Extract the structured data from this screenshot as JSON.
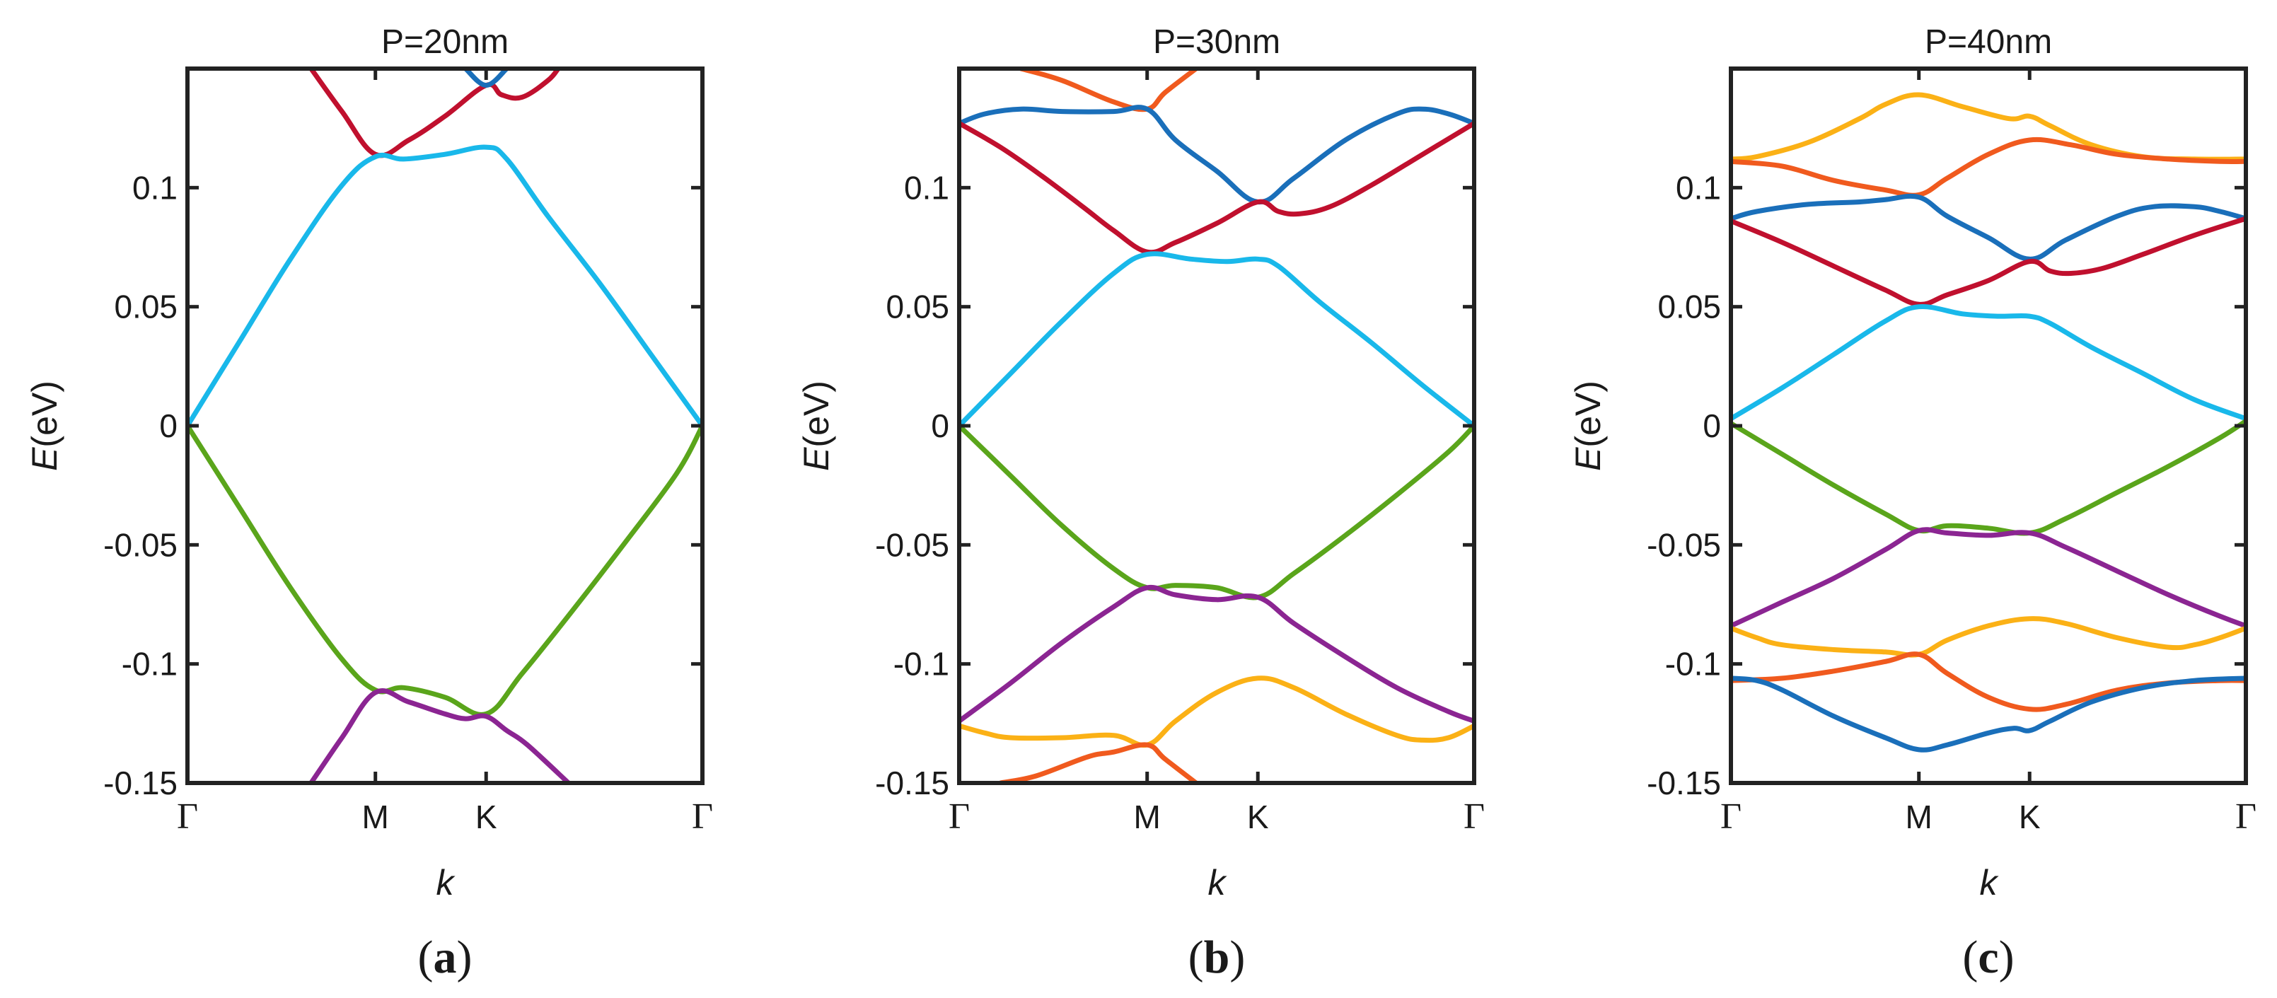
{
  "chart_data": [
    {
      "type": "line",
      "panel_label": "(a)",
      "panel_letter": "a",
      "title": "P=20nm",
      "xlabel": "k",
      "ylabel_italic": "E",
      "ylabel_unit": "(eV)",
      "ylim": [
        -0.15,
        0.15
      ],
      "yticks": [
        -0.15,
        -0.1,
        -0.05,
        0,
        0.05,
        0.1
      ],
      "ytick_labels": [
        "-0.15",
        "-0.1",
        "-0.05",
        "0",
        "0.05",
        "0.1"
      ],
      "xlim": [
        0,
        1
      ],
      "xticks": [
        0,
        0.365,
        0.58,
        1
      ],
      "xtick_labels": [
        "Γ",
        "M",
        "K",
        "Γ"
      ],
      "grid": false,
      "series": [
        {
          "name": "red-upper",
          "color": "#c0102e",
          "x": [
            0.24,
            0.3,
            0.365,
            0.43,
            0.5,
            0.58,
            0.61,
            0.65,
            0.7,
            0.72
          ],
          "y": [
            0.15,
            0.132,
            0.114,
            0.12,
            0.13,
            0.143,
            0.139,
            0.138,
            0.145,
            0.15
          ]
        },
        {
          "name": "blue-top",
          "color": "#1a6fba",
          "x": [
            0.54,
            0.58,
            0.62
          ],
          "y": [
            0.15,
            0.143,
            0.15
          ]
        },
        {
          "name": "cyan",
          "color": "#19b8ea",
          "x": [
            0,
            0.1,
            0.2,
            0.3,
            0.365,
            0.42,
            0.5,
            0.58,
            0.62,
            0.7,
            0.8,
            0.9,
            1
          ],
          "y": [
            0,
            0.035,
            0.07,
            0.101,
            0.113,
            0.112,
            0.114,
            0.117,
            0.112,
            0.088,
            0.06,
            0.03,
            0
          ]
        },
        {
          "name": "green",
          "color": "#5aa51b",
          "x": [
            0,
            0.1,
            0.2,
            0.3,
            0.365,
            0.42,
            0.5,
            0.58,
            0.65,
            0.75,
            0.85,
            0.95,
            1
          ],
          "y": [
            0,
            -0.034,
            -0.068,
            -0.098,
            -0.111,
            -0.11,
            -0.114,
            -0.121,
            -0.104,
            -0.077,
            -0.049,
            -0.02,
            0
          ]
        },
        {
          "name": "purple",
          "color": "#8b2592",
          "x": [
            0.24,
            0.3,
            0.365,
            0.43,
            0.5,
            0.54,
            0.58,
            0.62,
            0.66,
            0.74
          ],
          "y": [
            -0.15,
            -0.131,
            -0.112,
            -0.116,
            -0.121,
            -0.123,
            -0.122,
            -0.128,
            -0.134,
            -0.15
          ]
        }
      ]
    },
    {
      "type": "line",
      "panel_label": "(b)",
      "panel_letter": "b",
      "title": "P=30nm",
      "xlabel": "k",
      "ylabel_italic": "E",
      "ylabel_unit": "(eV)",
      "ylim": [
        -0.15,
        0.15
      ],
      "yticks": [
        -0.15,
        -0.1,
        -0.05,
        0,
        0.05,
        0.1
      ],
      "ytick_labels": [
        "-0.15",
        "-0.1",
        "-0.05",
        "0",
        "0.05",
        "0.1"
      ],
      "xlim": [
        0,
        1
      ],
      "xticks": [
        0,
        0.365,
        0.58,
        1
      ],
      "xtick_labels": [
        "Γ",
        "M",
        "K",
        "Γ"
      ],
      "grid": false,
      "series": [
        {
          "name": "orange-upper",
          "color": "#f05a1e",
          "x": [
            0.12,
            0.2,
            0.3,
            0.365,
            0.4,
            0.46
          ],
          "y": [
            0.15,
            0.145,
            0.136,
            0.133,
            0.14,
            0.15
          ]
        },
        {
          "name": "blue",
          "color": "#1a6fba",
          "x": [
            0,
            0.05,
            0.12,
            0.2,
            0.3,
            0.365,
            0.42,
            0.5,
            0.58,
            0.65,
            0.75,
            0.85,
            0.9,
            0.95,
            1
          ],
          "y": [
            0.127,
            0.131,
            0.133,
            0.132,
            0.132,
            0.133,
            0.12,
            0.107,
            0.094,
            0.104,
            0.12,
            0.131,
            0.133,
            0.131,
            0.127
          ]
        },
        {
          "name": "red",
          "color": "#c0102e",
          "x": [
            0,
            0.08,
            0.16,
            0.24,
            0.3,
            0.365,
            0.42,
            0.5,
            0.58,
            0.62,
            0.66,
            0.72,
            0.8,
            0.9,
            1
          ],
          "y": [
            0.127,
            0.117,
            0.105,
            0.092,
            0.082,
            0.073,
            0.077,
            0.085,
            0.094,
            0.09,
            0.089,
            0.092,
            0.101,
            0.114,
            0.127
          ]
        },
        {
          "name": "cyan",
          "color": "#19b8ea",
          "x": [
            0,
            0.1,
            0.2,
            0.3,
            0.365,
            0.45,
            0.52,
            0.58,
            0.62,
            0.7,
            0.8,
            0.9,
            1
          ],
          "y": [
            0,
            0.022,
            0.044,
            0.064,
            0.072,
            0.07,
            0.069,
            0.07,
            0.067,
            0.052,
            0.035,
            0.017,
            0
          ]
        },
        {
          "name": "green",
          "color": "#5aa51b",
          "x": [
            0,
            0.1,
            0.2,
            0.3,
            0.365,
            0.42,
            0.5,
            0.58,
            0.65,
            0.75,
            0.85,
            0.95,
            1
          ],
          "y": [
            0,
            -0.021,
            -0.042,
            -0.06,
            -0.068,
            -0.067,
            -0.068,
            -0.072,
            -0.062,
            -0.046,
            -0.029,
            -0.011,
            0
          ]
        },
        {
          "name": "purple",
          "color": "#8b2592",
          "x": [
            0,
            0.1,
            0.2,
            0.3,
            0.365,
            0.42,
            0.5,
            0.58,
            0.65,
            0.75,
            0.85,
            0.95,
            1
          ],
          "y": [
            -0.124,
            -0.108,
            -0.091,
            -0.076,
            -0.068,
            -0.071,
            -0.073,
            -0.072,
            -0.083,
            -0.097,
            -0.11,
            -0.12,
            -0.124
          ]
        },
        {
          "name": "yellow",
          "color": "#fbb116",
          "x": [
            0,
            0.05,
            0.1,
            0.2,
            0.3,
            0.365,
            0.42,
            0.5,
            0.58,
            0.65,
            0.75,
            0.85,
            0.9,
            0.95,
            1
          ],
          "y": [
            -0.126,
            -0.129,
            -0.131,
            -0.131,
            -0.13,
            -0.134,
            -0.124,
            -0.112,
            -0.106,
            -0.11,
            -0.121,
            -0.13,
            -0.132,
            -0.131,
            -0.126
          ]
        },
        {
          "name": "orange-lower",
          "color": "#f05a1e",
          "x": [
            0.08,
            0.15,
            0.25,
            0.3,
            0.365,
            0.4,
            0.46
          ],
          "y": [
            -0.15,
            -0.147,
            -0.139,
            -0.137,
            -0.134,
            -0.14,
            -0.15
          ]
        }
      ]
    },
    {
      "type": "line",
      "panel_label": "(c)",
      "panel_letter": "c",
      "title": "P=40nm",
      "xlabel": "k",
      "ylabel_italic": "E",
      "ylabel_unit": "(eV)",
      "ylim": [
        -0.15,
        0.15
      ],
      "yticks": [
        -0.15,
        -0.1,
        -0.05,
        0,
        0.05,
        0.1
      ],
      "ytick_labels": [
        "-0.15",
        "-0.1",
        "-0.05",
        "0",
        "0.05",
        "0.1"
      ],
      "xlim": [
        0,
        1
      ],
      "xticks": [
        0,
        0.365,
        0.58,
        1
      ],
      "xtick_labels": [
        "Γ",
        "M",
        "K",
        "Γ"
      ],
      "grid": false,
      "series": [
        {
          "name": "yellow-upper",
          "color": "#fbb116",
          "x": [
            0,
            0.05,
            0.15,
            0.25,
            0.3,
            0.365,
            0.45,
            0.54,
            0.58,
            0.62,
            0.7,
            0.8,
            0.9,
            1
          ],
          "y": [
            0.112,
            0.113,
            0.119,
            0.129,
            0.135,
            0.139,
            0.134,
            0.129,
            0.13,
            0.126,
            0.118,
            0.113,
            0.112,
            0.112
          ]
        },
        {
          "name": "orange-upper",
          "color": "#f05a1e",
          "x": [
            0,
            0.1,
            0.2,
            0.3,
            0.365,
            0.42,
            0.5,
            0.58,
            0.66,
            0.75,
            0.85,
            0.95,
            1
          ],
          "y": [
            0.111,
            0.109,
            0.103,
            0.099,
            0.097,
            0.104,
            0.114,
            0.12,
            0.118,
            0.114,
            0.112,
            0.111,
            0.111
          ]
        },
        {
          "name": "blue-upper",
          "color": "#1a6fba",
          "x": [
            0,
            0.05,
            0.15,
            0.25,
            0.3,
            0.365,
            0.42,
            0.5,
            0.58,
            0.65,
            0.75,
            0.82,
            0.9,
            0.95,
            1
          ],
          "y": [
            0.087,
            0.09,
            0.093,
            0.094,
            0.095,
            0.096,
            0.088,
            0.079,
            0.07,
            0.078,
            0.088,
            0.092,
            0.092,
            0.09,
            0.087
          ]
        },
        {
          "name": "red",
          "color": "#c0102e",
          "x": [
            0,
            0.1,
            0.2,
            0.3,
            0.365,
            0.42,
            0.5,
            0.58,
            0.62,
            0.66,
            0.72,
            0.8,
            0.9,
            1
          ],
          "y": [
            0.086,
            0.077,
            0.067,
            0.057,
            0.051,
            0.055,
            0.061,
            0.069,
            0.065,
            0.064,
            0.066,
            0.072,
            0.08,
            0.087
          ]
        },
        {
          "name": "cyan",
          "color": "#19b8ea",
          "x": [
            0,
            0.1,
            0.2,
            0.3,
            0.365,
            0.45,
            0.52,
            0.58,
            0.62,
            0.7,
            0.8,
            0.9,
            1
          ],
          "y": [
            0.003,
            0.016,
            0.03,
            0.044,
            0.05,
            0.047,
            0.046,
            0.046,
            0.043,
            0.033,
            0.022,
            0.011,
            0.003
          ]
        },
        {
          "name": "green",
          "color": "#5aa51b",
          "x": [
            0,
            0.1,
            0.2,
            0.3,
            0.365,
            0.42,
            0.5,
            0.58,
            0.65,
            0.75,
            0.85,
            0.95,
            1
          ],
          "y": [
            0.001,
            -0.012,
            -0.025,
            -0.037,
            -0.044,
            -0.042,
            -0.043,
            -0.045,
            -0.039,
            -0.028,
            -0.017,
            -0.005,
            0.002
          ]
        },
        {
          "name": "purple",
          "color": "#8b2592",
          "x": [
            0,
            0.1,
            0.2,
            0.3,
            0.365,
            0.42,
            0.5,
            0.58,
            0.65,
            0.75,
            0.85,
            0.95,
            1
          ],
          "y": [
            -0.084,
            -0.074,
            -0.064,
            -0.052,
            -0.044,
            -0.045,
            -0.046,
            -0.045,
            -0.051,
            -0.061,
            -0.071,
            -0.08,
            -0.084
          ]
        },
        {
          "name": "yellow-lower",
          "color": "#fbb116",
          "x": [
            0,
            0.05,
            0.1,
            0.2,
            0.3,
            0.365,
            0.42,
            0.5,
            0.58,
            0.65,
            0.75,
            0.85,
            0.9,
            0.95,
            1
          ],
          "y": [
            -0.085,
            -0.089,
            -0.092,
            -0.094,
            -0.095,
            -0.096,
            -0.09,
            -0.084,
            -0.081,
            -0.083,
            -0.089,
            -0.093,
            -0.092,
            -0.089,
            -0.085
          ]
        },
        {
          "name": "orange-lower",
          "color": "#f05a1e",
          "x": [
            0,
            0.1,
            0.2,
            0.3,
            0.365,
            0.42,
            0.5,
            0.58,
            0.65,
            0.75,
            0.85,
            0.95,
            1
          ],
          "y": [
            -0.107,
            -0.106,
            -0.103,
            -0.099,
            -0.096,
            -0.104,
            -0.114,
            -0.119,
            -0.117,
            -0.111,
            -0.108,
            -0.107,
            -0.107
          ]
        },
        {
          "name": "blue-lower",
          "color": "#1a6fba",
          "x": [
            0,
            0.05,
            0.1,
            0.2,
            0.3,
            0.365,
            0.42,
            0.5,
            0.55,
            0.58,
            0.62,
            0.7,
            0.8,
            0.9,
            1
          ],
          "y": [
            -0.106,
            -0.107,
            -0.111,
            -0.122,
            -0.131,
            -0.136,
            -0.134,
            -0.129,
            -0.127,
            -0.128,
            -0.124,
            -0.116,
            -0.11,
            -0.107,
            -0.106
          ]
        }
      ]
    }
  ]
}
